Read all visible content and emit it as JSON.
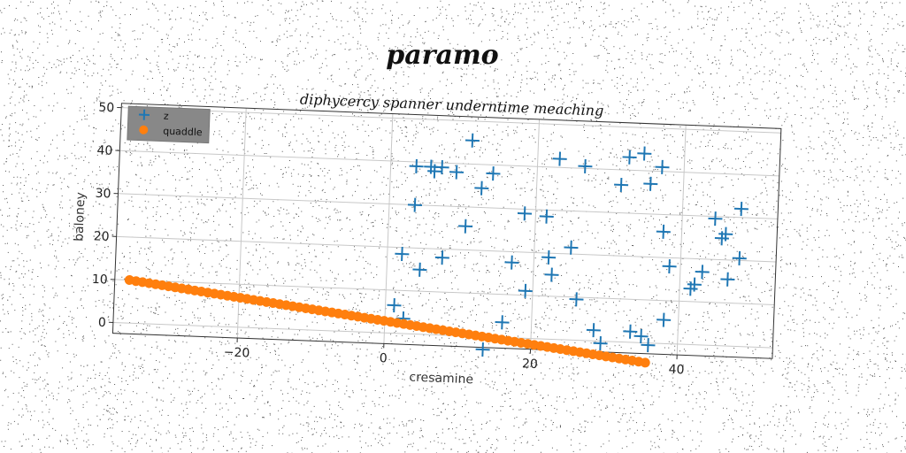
{
  "chart_data": {
    "type": "scatter",
    "title": "paramo",
    "subtitle": "diphycercy spanner underntime meaching",
    "xlabel": "cresamine",
    "ylabel": "baloney",
    "xlim": [
      -37,
      53
    ],
    "ylim": [
      -2.5,
      51
    ],
    "xticks": [
      -20,
      0,
      20,
      40
    ],
    "yticks": [
      0,
      10,
      20,
      30,
      40,
      50
    ],
    "grid": true,
    "legend_position": "top-left",
    "series": [
      {
        "name": "z",
        "marker": "+",
        "color": "#1f77b4",
        "points": [
          [
            1.2,
            6.5
          ],
          [
            2,
            18.5
          ],
          [
            2.5,
            3.5
          ],
          [
            3.5,
            30
          ],
          [
            3.5,
            39
          ],
          [
            4.5,
            15
          ],
          [
            5.5,
            39
          ],
          [
            6,
            38
          ],
          [
            7,
            39
          ],
          [
            7.5,
            18
          ],
          [
            9,
            38
          ],
          [
            10.5,
            25.5
          ],
          [
            11,
            45.5
          ],
          [
            12.5,
            34.5
          ],
          [
            13.5,
            -3
          ],
          [
            14,
            38
          ],
          [
            16,
            3.5
          ],
          [
            17,
            17.5
          ],
          [
            18.5,
            29
          ],
          [
            19,
            11
          ],
          [
            21.5,
            28.5
          ],
          [
            22,
            19
          ],
          [
            22.5,
            15
          ],
          [
            23,
            42
          ],
          [
            25,
            21.5
          ],
          [
            26,
            9.5
          ],
          [
            26.5,
            40.5
          ],
          [
            28.5,
            2.5
          ],
          [
            29.5,
            -0.5
          ],
          [
            31.5,
            36.5
          ],
          [
            32.5,
            43
          ],
          [
            33.5,
            2.5
          ],
          [
            34.5,
            44
          ],
          [
            35,
            1.5
          ],
          [
            35.5,
            37
          ],
          [
            36,
            -0.5
          ],
          [
            37,
            41
          ],
          [
            37.5,
            26
          ],
          [
            38,
            5.5
          ],
          [
            38.5,
            18
          ],
          [
            41.5,
            13
          ],
          [
            42,
            14
          ],
          [
            43,
            17
          ],
          [
            44.5,
            29.5
          ],
          [
            45.5,
            25
          ],
          [
            46,
            26
          ],
          [
            46.5,
            15.5
          ],
          [
            48,
            32
          ],
          [
            48,
            20.5
          ]
        ]
      },
      {
        "name": "quaddle",
        "marker": "o",
        "color": "#ff7f0e",
        "x_start": -35,
        "x_end": 35.7,
        "y_start": 10,
        "y_end": -4.6,
        "count": 80
      }
    ]
  }
}
